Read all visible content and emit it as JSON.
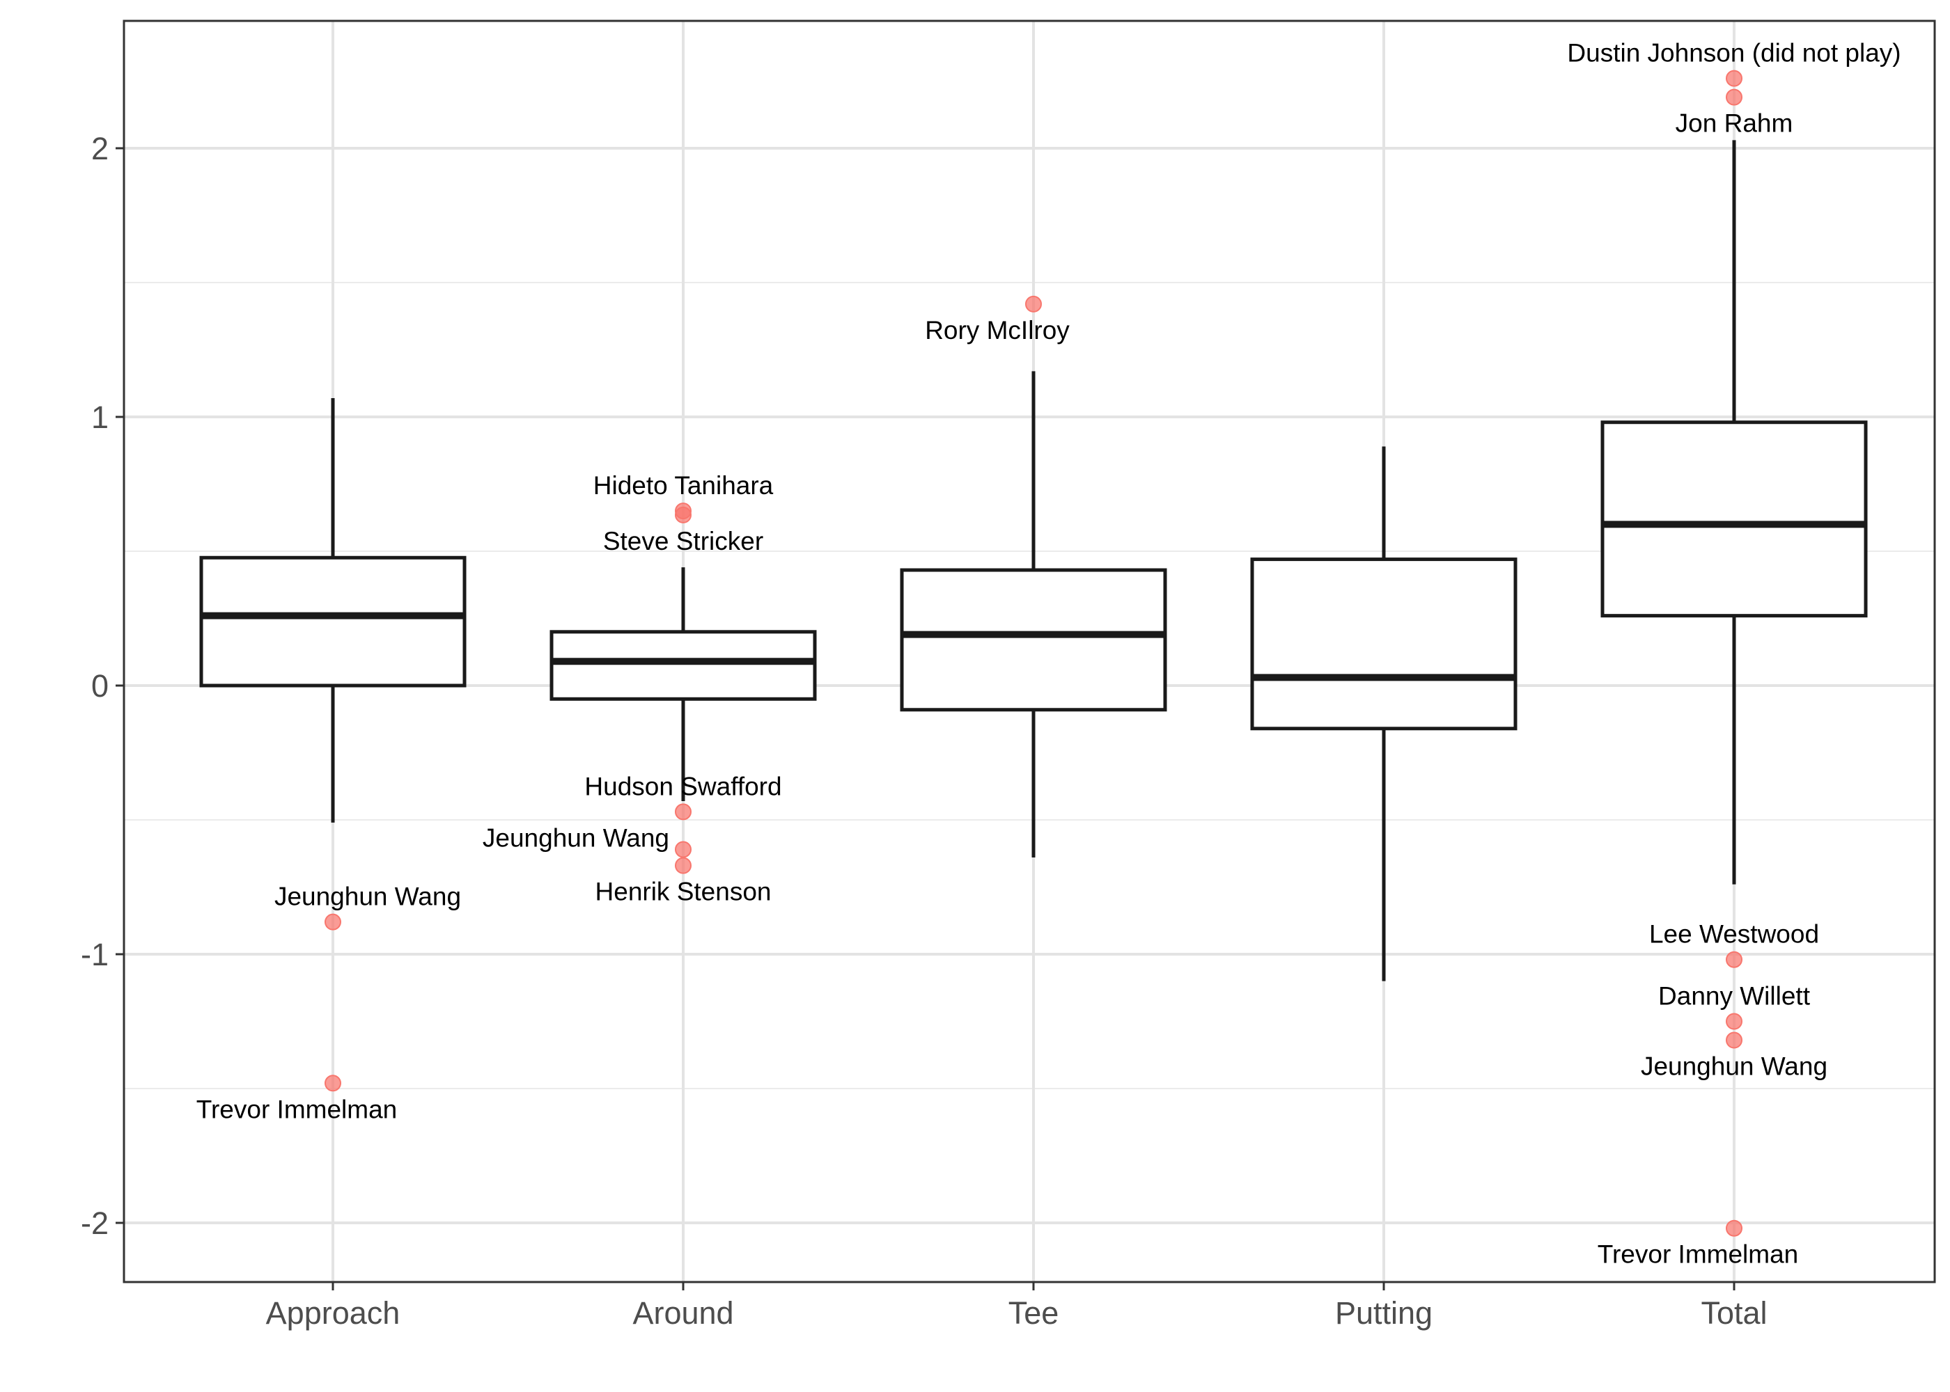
{
  "chart_data": {
    "type": "boxplot",
    "title": "",
    "xlabel": "",
    "ylabel": "",
    "categories": [
      "Approach",
      "Around",
      "Tee",
      "Putting",
      "Total"
    ],
    "ylim": [
      -2.22,
      2.47
    ],
    "yticks": [
      -2,
      -1,
      0,
      1,
      2
    ],
    "ytick_labels": [
      "-2",
      "-1",
      "0",
      "1",
      "2"
    ],
    "grid": true,
    "outlier_color": "#f8766d",
    "boxes": [
      {
        "category": "Approach",
        "whisker_low": -0.51,
        "q1": 0.0,
        "median": 0.26,
        "q3": 0.476,
        "whisker_high": 1.07
      },
      {
        "category": "Around",
        "whisker_low": -0.43,
        "q1": -0.05,
        "median": 0.09,
        "q3": 0.2,
        "whisker_high": 0.44
      },
      {
        "category": "Tee",
        "whisker_low": -0.64,
        "q1": -0.09,
        "median": 0.19,
        "q3": 0.43,
        "whisker_high": 1.17
      },
      {
        "category": "Putting",
        "whisker_low": -1.1,
        "q1": -0.16,
        "median": 0.03,
        "q3": 0.47,
        "whisker_high": 0.89
      },
      {
        "category": "Total",
        "whisker_low": -0.74,
        "q1": 0.26,
        "median": 0.6,
        "q3": 0.98,
        "whisker_high": 2.03
      }
    ],
    "outliers": [
      {
        "category": "Approach",
        "y": -0.88,
        "label": "Jeunghun Wang",
        "label_pos": "above-right"
      },
      {
        "category": "Approach",
        "y": -1.48,
        "label": "Trevor Immelman",
        "label_pos": "below-left"
      },
      {
        "category": "Around",
        "y": 0.65,
        "label": "Hideto Tanihara",
        "label_pos": "above"
      },
      {
        "category": "Around",
        "y": 0.635,
        "label": "Steve Stricker",
        "label_pos": "below"
      },
      {
        "category": "Around",
        "y": -0.47,
        "label": "Hudson Swafford",
        "label_pos": "above"
      },
      {
        "category": "Around",
        "y": -0.61,
        "label": "Jeunghun Wang",
        "label_pos": "left"
      },
      {
        "category": "Around",
        "y": -0.67,
        "label": "Henrik Stenson",
        "label_pos": "below"
      },
      {
        "category": "Tee",
        "y": 1.42,
        "label": "Rory McIlroy",
        "label_pos": "below-left"
      },
      {
        "category": "Total",
        "y": 2.26,
        "label": "Dustin Johnson (did not play)",
        "label_pos": "above"
      },
      {
        "category": "Total",
        "y": 2.19,
        "label": "Jon Rahm",
        "label_pos": "below"
      },
      {
        "category": "Total",
        "y": -1.02,
        "label": "Lee Westwood",
        "label_pos": "above"
      },
      {
        "category": "Total",
        "y": -1.25,
        "label": "Danny Willett",
        "label_pos": "above"
      },
      {
        "category": "Total",
        "y": -1.32,
        "label": "Jeunghun Wang",
        "label_pos": "below"
      },
      {
        "category": "Total",
        "y": -2.02,
        "label": "Trevor Immelman",
        "label_pos": "below-left"
      }
    ]
  }
}
